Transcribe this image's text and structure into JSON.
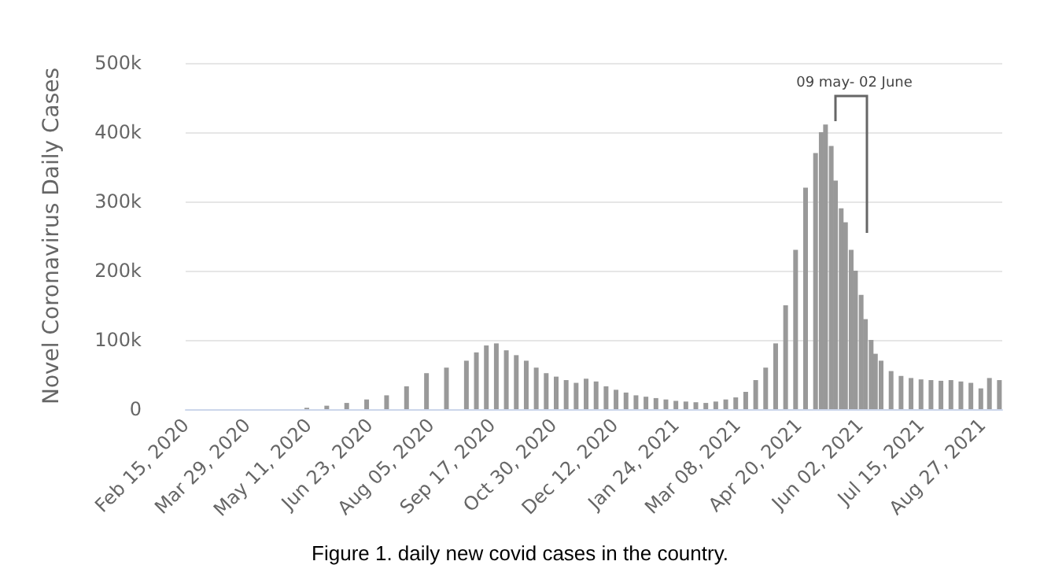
{
  "chart_data": {
    "type": "bar",
    "ylabel": "Novel Coronavirus Daily Cases",
    "color": "#999999",
    "grid": "y",
    "x": [
      "2020-05-10",
      "2020-05-24",
      "2020-06-07",
      "2020-06-21",
      "2020-07-05",
      "2020-07-19",
      "2020-08-02",
      "2020-08-16",
      "2020-08-30",
      "2020-09-06",
      "2020-09-13",
      "2020-09-20",
      "2020-09-27",
      "2020-10-04",
      "2020-10-11",
      "2020-10-18",
      "2020-10-25",
      "2020-11-01",
      "2020-11-08",
      "2020-11-15",
      "2020-11-22",
      "2020-11-29",
      "2020-12-06",
      "2020-12-13",
      "2020-12-20",
      "2020-12-27",
      "2021-01-03",
      "2021-01-10",
      "2021-01-17",
      "2021-01-24",
      "2021-01-31",
      "2021-02-07",
      "2021-02-14",
      "2021-02-21",
      "2021-02-28",
      "2021-03-07",
      "2021-03-14",
      "2021-03-21",
      "2021-03-28",
      "2021-04-04",
      "2021-04-11",
      "2021-04-18",
      "2021-04-25",
      "2021-05-02",
      "2021-05-06",
      "2021-05-09",
      "2021-05-13",
      "2021-05-16",
      "2021-05-20",
      "2021-05-23",
      "2021-05-27",
      "2021-05-30",
      "2021-06-03",
      "2021-06-06",
      "2021-06-10",
      "2021-06-13",
      "2021-06-17",
      "2021-06-24",
      "2021-07-01",
      "2021-07-08",
      "2021-07-15",
      "2021-07-22",
      "2021-07-29",
      "2021-08-05",
      "2021-08-12",
      "2021-08-19",
      "2021-08-26",
      "2021-09-01",
      "2021-09-08"
    ],
    "values": [
      2000,
      5000,
      9000,
      14000,
      20000,
      33000,
      52000,
      60000,
      70000,
      82000,
      92000,
      95000,
      85000,
      78000,
      70000,
      60000,
      52000,
      47000,
      42000,
      38000,
      44000,
      40000,
      33000,
      28000,
      24000,
      20000,
      18000,
      16000,
      14000,
      12000,
      11000,
      10000,
      9000,
      11000,
      14000,
      17000,
      25000,
      42000,
      60000,
      95000,
      150000,
      230000,
      320000,
      370000,
      400000,
      411000,
      380000,
      330000,
      290000,
      270000,
      230000,
      200000,
      165000,
      130000,
      100000,
      80000,
      70000,
      55000,
      48000,
      45000,
      43000,
      42000,
      41000,
      42000,
      40000,
      38000,
      30000,
      45000,
      42000
    ],
    "xlim": [
      "2020-02-15",
      "2021-09-10"
    ],
    "xticks": [
      {
        "value": "2020-02-15",
        "label": "Feb 15, 2020"
      },
      {
        "value": "2020-03-29",
        "label": "Mar 29, 2020"
      },
      {
        "value": "2020-05-11",
        "label": "May 11, 2020"
      },
      {
        "value": "2020-06-23",
        "label": "Jun 23, 2020"
      },
      {
        "value": "2020-08-05",
        "label": "Aug 05, 2020"
      },
      {
        "value": "2020-09-17",
        "label": "Sep 17, 2020"
      },
      {
        "value": "2020-10-30",
        "label": "Oct 30, 2020"
      },
      {
        "value": "2020-12-12",
        "label": "Dec 12, 2020"
      },
      {
        "value": "2021-01-24",
        "label": "Jan 24, 2021"
      },
      {
        "value": "2021-03-08",
        "label": "Mar 08, 2021"
      },
      {
        "value": "2021-04-20",
        "label": "Apr 20, 2021"
      },
      {
        "value": "2021-06-02",
        "label": "Jun 02, 2021"
      },
      {
        "value": "2021-07-15",
        "label": "Jul 15, 2021"
      },
      {
        "value": "2021-08-27",
        "label": "Aug 27, 2021"
      }
    ],
    "ylim": [
      0,
      500000
    ],
    "yticks": [
      0,
      {
        "value": 100000,
        "label": "100k"
      },
      {
        "value": 200000,
        "label": "200k"
      },
      {
        "value": 300000,
        "label": "300k"
      },
      {
        "value": 400000,
        "label": "400k"
      },
      {
        "value": 500000,
        "label": "500k"
      }
    ],
    "annotations": [
      "09 may- 02 June",
      "Figure 1. daily new covid cases in the country."
    ]
  }
}
